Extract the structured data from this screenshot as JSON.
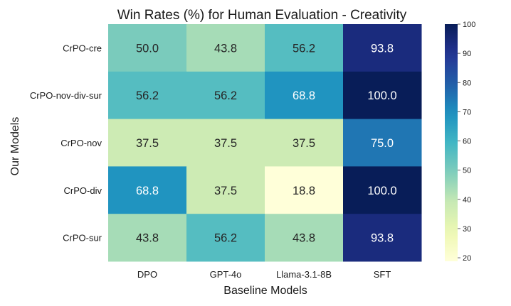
{
  "chart_data": {
    "type": "heatmap",
    "title": "Win Rates (%) for Human Evaluation - Creativity",
    "xlabel": "Baseline Models",
    "ylabel": "Our Models",
    "columns": [
      "DPO",
      "GPT-4o",
      "Llama-3.1-8B",
      "SFT"
    ],
    "rows": [
      "CrPO-cre",
      "CrPO-nov-div-sur",
      "CrPO-nov",
      "CrPO-div",
      "CrPO-sur"
    ],
    "values": [
      [
        50.0,
        43.8,
        56.2,
        93.8
      ],
      [
        56.2,
        56.2,
        68.8,
        100.0
      ],
      [
        37.5,
        37.5,
        37.5,
        75.0
      ],
      [
        68.8,
        37.5,
        18.8,
        100.0
      ],
      [
        43.8,
        56.2,
        43.8,
        93.8
      ]
    ],
    "value_labels": [
      [
        "50.0",
        "43.8",
        "56.2",
        "93.8"
      ],
      [
        "56.2",
        "56.2",
        "68.8",
        "100.0"
      ],
      [
        "37.5",
        "37.5",
        "37.5",
        "75.0"
      ],
      [
        "68.8",
        "37.5",
        "18.8",
        "100.0"
      ],
      [
        "43.8",
        "56.2",
        "43.8",
        "93.8"
      ]
    ],
    "colorbar": {
      "min": 18.8,
      "max": 100,
      "ticks": [
        20,
        30,
        40,
        50,
        60,
        70,
        80,
        90,
        100
      ],
      "tick_labels": [
        "20",
        "30",
        "40",
        "50",
        "60",
        "70",
        "80",
        "90",
        "100"
      ],
      "colormap": "YlGnBu"
    }
  }
}
